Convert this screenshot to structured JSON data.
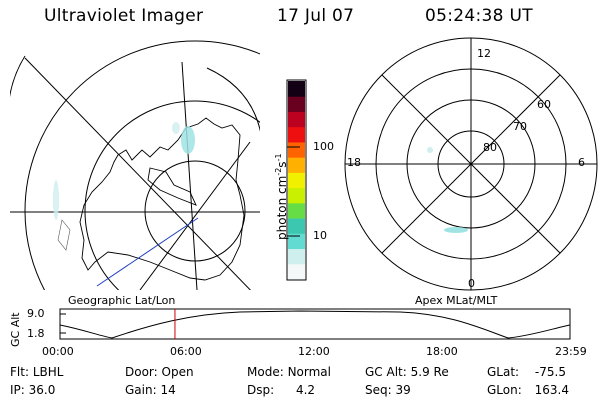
{
  "header": {
    "instrument": "Ultraviolet Imager",
    "date": "17 Jul 07",
    "time": "05:24:38 UT"
  },
  "colorbar": {
    "ticks": [
      "100",
      "10"
    ],
    "unit": "photon cm",
    "unit_exp1": "-2",
    "unit_mid": "s",
    "unit_exp2": "-1"
  },
  "left_panel": {
    "caption": "Geographic Lat/Lon"
  },
  "right_panel": {
    "caption": "Apex MLat/MLT",
    "mlt_labels": {
      "top": "12",
      "left": "18",
      "right": "6",
      "bottom": "0"
    },
    "lat_labels": [
      "60",
      "70",
      "80"
    ]
  },
  "orbit_plot": {
    "ylabel": "GC Alt",
    "y_ticks": [
      "9.0",
      "1.8"
    ],
    "x_ticks": [
      "00:00",
      "06:00",
      "12:00",
      "18:00",
      "23:59"
    ],
    "current_time_hours": 5.41
  },
  "footer": {
    "row1": [
      {
        "label": "Flt:",
        "value": "LBHL"
      },
      {
        "label": "Door:",
        "value": "Open"
      },
      {
        "label": "Mode:",
        "value": "Normal"
      },
      {
        "label": "GC Alt:",
        "value": "5.9 Re"
      },
      {
        "label": "GLat:",
        "value": "-75.5"
      }
    ],
    "row2": [
      {
        "label": "IP:",
        "value": "36.0"
      },
      {
        "label": "Gain:",
        "value": "14"
      },
      {
        "label": "Dsp:",
        "value": "4.2"
      },
      {
        "label": "Seq:",
        "value": "39"
      },
      {
        "label": "GLon:",
        "value": "163.4"
      }
    ]
  },
  "colors": {
    "orbit_marker": "#cc0000",
    "track_line": "#1f3fbf",
    "aurora": "#9fe3e3",
    "colorbar": [
      "#f4f8f8",
      "#cfeeee",
      "#62dcd2",
      "#3cc8b0",
      "#66dd44",
      "#c8f000",
      "#f0f000",
      "#ffb000",
      "#ff6400",
      "#ee1010",
      "#bb0020",
      "#6a0020",
      "#140014"
    ]
  }
}
